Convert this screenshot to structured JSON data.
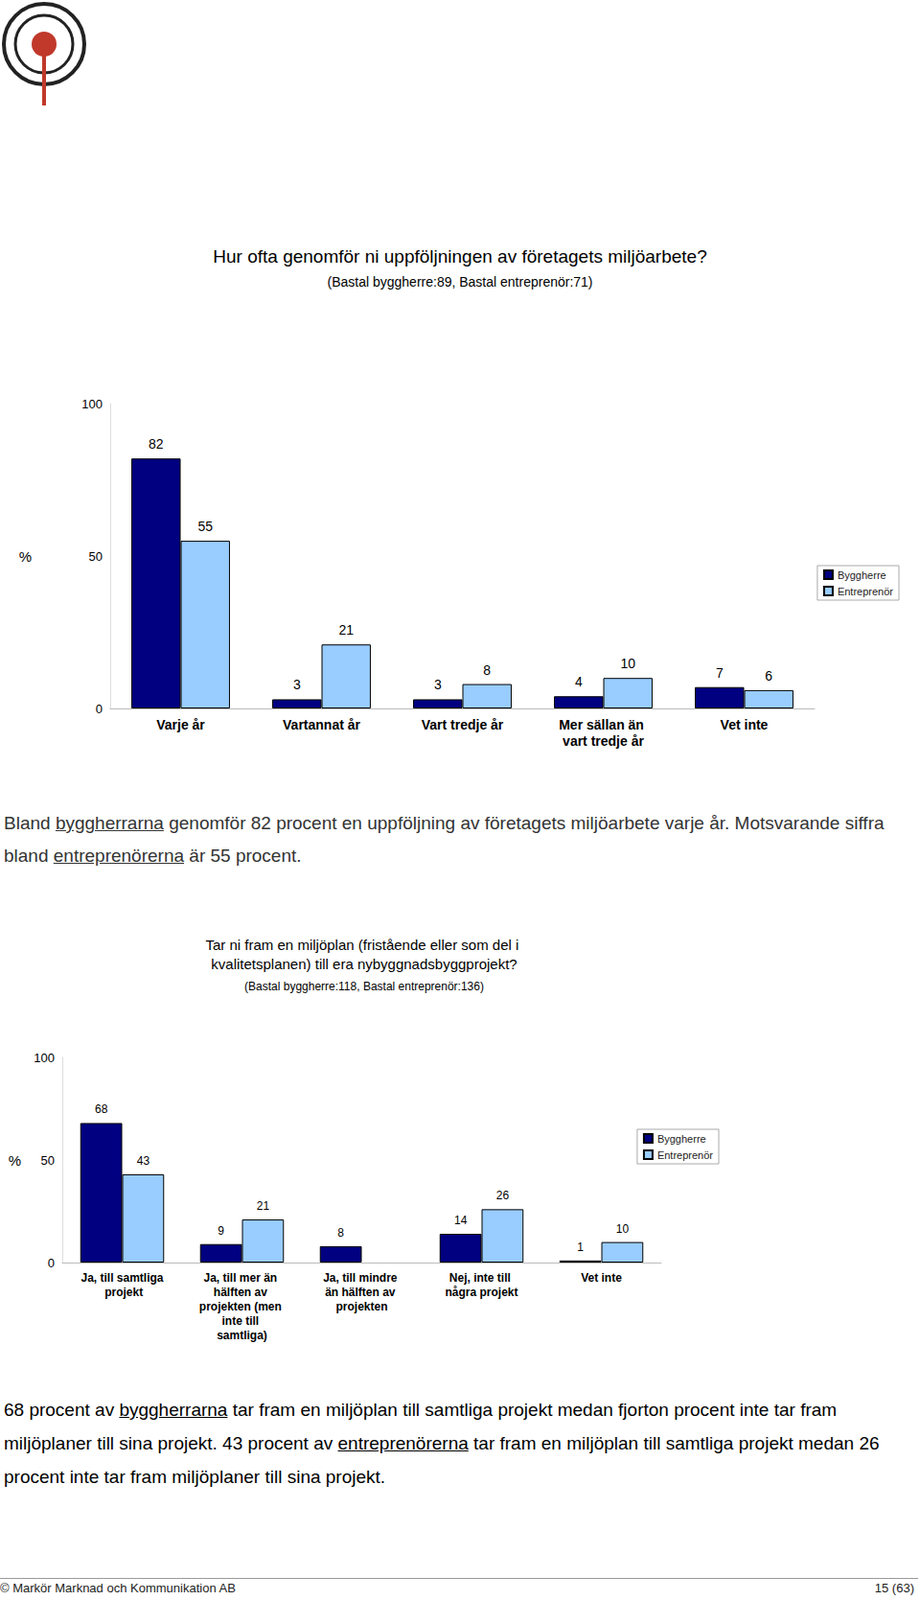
{
  "chart_data": [
    {
      "type": "bar",
      "title": "Hur ofta genomför ni uppföljningen av företagets miljöarbete?",
      "subtitle": "(Bastal byggherre:89, Bastal entreprenör:71)",
      "y_label": "%",
      "categories": [
        "Varje år",
        "Vartannat år",
        "Vart tredje år",
        "Mer sällan än vart tredje år",
        "Vet inte"
      ],
      "series": [
        {
          "name": "Byggherre",
          "color": "#000080",
          "values": [
            82,
            3,
            3,
            4,
            7
          ]
        },
        {
          "name": "Entreprenör",
          "color": "#99ccff",
          "values": [
            55,
            21,
            8,
            10,
            6
          ]
        }
      ],
      "ylim": [
        0,
        100
      ],
      "yticks": [
        0,
        50,
        100
      ],
      "grid": false,
      "legend": "right",
      "data_labels": true
    },
    {
      "type": "bar",
      "title": "Tar ni fram en miljöplan (fristående eller som del i kvalitetsplanen) till era nybyggnadsbyggprojekt?",
      "subtitle": "(Bastal byggherre:118, Bastal entreprenör:136)",
      "y_label": "%",
      "categories": [
        "Ja, till samtliga projekt",
        "Ja, till mer än hälften av projekten (men inte till samtliga)",
        "Ja, till mindre än hälften av projekten",
        "Nej, inte till några projekt",
        "Vet inte"
      ],
      "series": [
        {
          "name": "Byggherre",
          "color": "#000080",
          "values": [
            68,
            9,
            8,
            14,
            1
          ]
        },
        {
          "name": "Entreprenör",
          "color": "#99ccff",
          "values": [
            43,
            21,
            null,
            26,
            10
          ]
        }
      ],
      "ylim": [
        0,
        100
      ],
      "yticks": [
        0,
        50,
        100
      ],
      "grid": false,
      "legend": "right",
      "data_labels": true
    }
  ],
  "paragraphs": [
    {
      "text": "Bland byggherrarna genomför 82 procent en uppföljning av företagets miljöarbete varje år. Motsvarande siffra bland entreprenörerna är 55 procent.",
      "underlined": [
        "byggherrarna",
        "entreprenörerna"
      ]
    },
    {
      "text": "68 procent av byggherrarna tar fram en miljöplan till samtliga projekt medan fjorton procent inte tar fram miljöplaner till sina projekt. 43 procent av entreprenörerna tar fram en miljöplan till samtliga projekt medan 26 procent inte tar fram miljöplaner till sina projekt.",
      "underlined": [
        "byggherrarna",
        "entreprenörerna"
      ]
    }
  ],
  "footer": {
    "left": "© Markör Marknad och Kommunikation AB",
    "right": "15 (63)"
  }
}
